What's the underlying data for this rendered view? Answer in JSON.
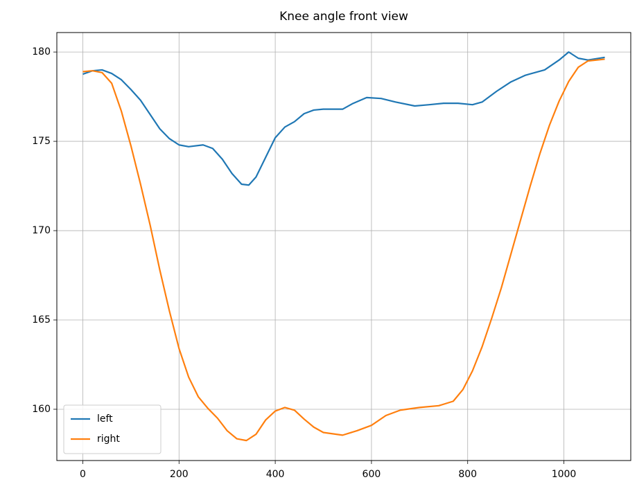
{
  "chart_data": {
    "type": "line",
    "title": "Knee angle front view",
    "series": [
      {
        "name": "left",
        "color": "#1f77b4",
        "x": [
          0,
          20,
          40,
          60,
          80,
          100,
          120,
          140,
          160,
          180,
          200,
          220,
          250,
          270,
          290,
          310,
          330,
          345,
          360,
          380,
          400,
          420,
          440,
          460,
          480,
          500,
          540,
          560,
          590,
          620,
          650,
          690,
          720,
          750,
          780,
          810,
          830,
          860,
          890,
          920,
          960,
          990,
          1010,
          1030,
          1050,
          1085
        ],
        "values": [
          178.76,
          178.95,
          179.0,
          178.8,
          178.45,
          177.9,
          177.3,
          176.5,
          175.7,
          175.15,
          174.8,
          174.7,
          174.8,
          174.6,
          174.0,
          173.2,
          172.6,
          172.55,
          173.0,
          174.1,
          175.2,
          175.8,
          176.1,
          176.55,
          176.75,
          176.8,
          176.8,
          177.1,
          177.45,
          177.4,
          177.2,
          176.98,
          177.05,
          177.13,
          177.13,
          177.05,
          177.2,
          177.8,
          178.33,
          178.7,
          179.0,
          179.55,
          180.0,
          179.65,
          179.55,
          179.7
        ]
      },
      {
        "name": "right",
        "color": "#ff7f0e",
        "x": [
          0,
          20,
          40,
          60,
          80,
          100,
          120,
          140,
          160,
          180,
          200,
          220,
          240,
          260,
          280,
          300,
          320,
          340,
          360,
          380,
          400,
          420,
          440,
          460,
          480,
          500,
          540,
          570,
          600,
          630,
          660,
          700,
          740,
          770,
          790,
          810,
          830,
          850,
          870,
          890,
          910,
          930,
          950,
          970,
          990,
          1010,
          1030,
          1050,
          1085
        ],
        "values": [
          178.9,
          178.95,
          178.85,
          178.25,
          176.7,
          174.75,
          172.6,
          170.3,
          167.8,
          165.5,
          163.4,
          161.8,
          160.7,
          160.05,
          159.5,
          158.8,
          158.35,
          158.25,
          158.6,
          159.4,
          159.9,
          160.1,
          159.95,
          159.45,
          159.0,
          158.7,
          158.55,
          158.8,
          159.1,
          159.65,
          159.95,
          160.1,
          160.2,
          160.45,
          161.1,
          162.15,
          163.5,
          165.1,
          166.8,
          168.7,
          170.6,
          172.5,
          174.3,
          175.9,
          177.25,
          178.35,
          179.15,
          179.5,
          179.6
        ]
      }
    ],
    "xlim": [
      -54,
      1139
    ],
    "xticks": [
      0,
      200,
      400,
      600,
      800,
      1000
    ],
    "ylim": [
      157.13,
      181.09
    ],
    "yticks": [
      160,
      165,
      170,
      175,
      180
    ],
    "grid": true,
    "legend": "lower left"
  }
}
